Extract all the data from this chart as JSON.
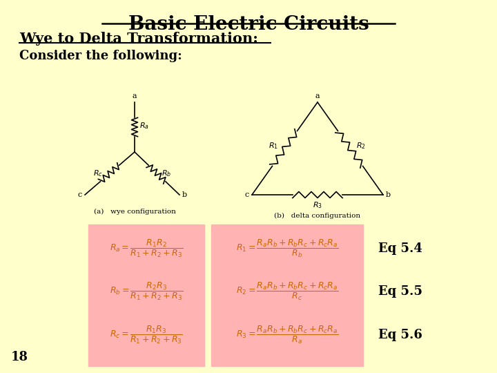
{
  "background_color": "#ffffcc",
  "title": "Basic Electric Circuits",
  "subtitle": "Wye to Delta Transformation:",
  "consider_text": "Consider the following:",
  "eq_label_1": "Eq 5.4",
  "eq_label_2": "Eq 5.5",
  "eq_label_3": "Eq 5.6",
  "page_number": "18",
  "pink_bg": "#ffb3b3",
  "text_color": "#000000",
  "formula_color": "#cc6600"
}
